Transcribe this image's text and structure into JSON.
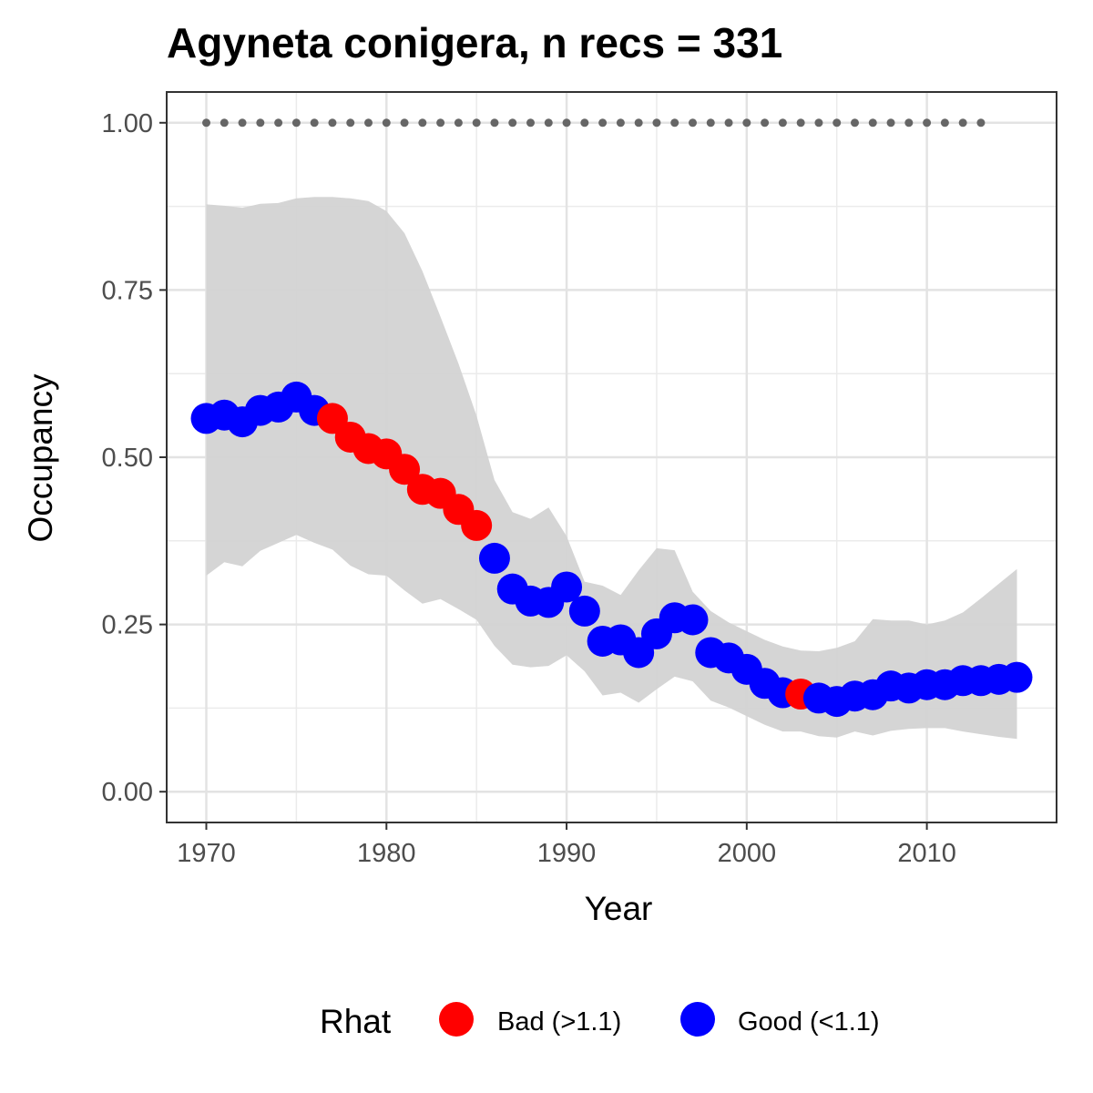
{
  "chart_data": {
    "type": "line",
    "title": "Agyneta conigera, n recs = 331",
    "xlabel": "Year",
    "ylabel": "Occupancy",
    "xlim": [
      1967.8,
      2017.2
    ],
    "ylim": [
      -0.046,
      1.046
    ],
    "x_ticks": [
      1970,
      1980,
      1990,
      2000,
      2010
    ],
    "x_tick_labels": [
      "1970",
      "1980",
      "1990",
      "2000",
      "2010"
    ],
    "y_ticks": [
      0,
      0.25,
      0.5,
      0.75,
      1.0
    ],
    "y_tick_labels": [
      "0.00",
      "0.25",
      "0.50",
      "0.75",
      "1.00"
    ],
    "grid": true,
    "legend": {
      "title": "Rhat",
      "position": "bottom",
      "entries": [
        {
          "label": "Bad (>1.1)",
          "color": "#FF0000"
        },
        {
          "label": "Good (<1.1)",
          "color": "#0000FF"
        }
      ]
    },
    "colors": {
      "bad": "#FF0000",
      "good": "#0000FF",
      "ribbon": "#D3D3D3",
      "reference": "#666666"
    },
    "years": [
      1970,
      1971,
      1972,
      1973,
      1974,
      1975,
      1976,
      1977,
      1978,
      1979,
      1980,
      1981,
      1982,
      1983,
      1984,
      1985,
      1986,
      1987,
      1988,
      1989,
      1990,
      1991,
      1992,
      1993,
      1994,
      1995,
      1996,
      1997,
      1998,
      1999,
      2000,
      2001,
      2002,
      2003,
      2004,
      2005,
      2006,
      2007,
      2008,
      2009,
      2010,
      2011,
      2012,
      2013,
      2014,
      2015
    ],
    "occupancy": [
      0.558,
      0.563,
      0.553,
      0.57,
      0.575,
      0.59,
      0.57,
      0.558,
      0.53,
      0.513,
      0.505,
      0.482,
      0.452,
      0.446,
      0.422,
      0.398,
      0.349,
      0.303,
      0.285,
      0.283,
      0.306,
      0.27,
      0.225,
      0.227,
      0.208,
      0.236,
      0.26,
      0.257,
      0.208,
      0.2,
      0.183,
      0.162,
      0.148,
      0.146,
      0.14,
      0.135,
      0.143,
      0.145,
      0.158,
      0.155,
      0.16,
      0.16,
      0.166,
      0.166,
      0.168,
      0.171
    ],
    "rhat_status": [
      "good",
      "good",
      "good",
      "good",
      "good",
      "good",
      "good",
      "bad",
      "bad",
      "bad",
      "bad",
      "bad",
      "bad",
      "bad",
      "bad",
      "bad",
      "good",
      "good",
      "good",
      "good",
      "good",
      "good",
      "good",
      "good",
      "good",
      "good",
      "good",
      "good",
      "good",
      "good",
      "good",
      "good",
      "good",
      "bad",
      "good",
      "good",
      "good",
      "good",
      "good",
      "good",
      "good",
      "good",
      "good",
      "good",
      "good",
      "good"
    ],
    "ci_upper": [
      0.878,
      0.876,
      0.873,
      0.879,
      0.88,
      0.887,
      0.889,
      0.889,
      0.887,
      0.883,
      0.868,
      0.835,
      0.778,
      0.71,
      0.64,
      0.562,
      0.466,
      0.418,
      0.408,
      0.425,
      0.382,
      0.314,
      0.308,
      0.294,
      0.331,
      0.364,
      0.361,
      0.299,
      0.27,
      0.253,
      0.24,
      0.227,
      0.217,
      0.211,
      0.21,
      0.215,
      0.225,
      0.258,
      0.256,
      0.256,
      0.25,
      0.256,
      0.268,
      0.289,
      0.333
    ],
    "ci_upper_years": [
      1970,
      1971,
      1972,
      1973,
      1974,
      1975,
      1976,
      1977,
      1978,
      1979,
      1980,
      1981,
      1982,
      1983,
      1984,
      1985,
      1986,
      1987,
      1988,
      1989,
      1990,
      1991,
      1992,
      1993,
      1994,
      1995,
      1996,
      1997,
      1998,
      1999,
      2000,
      2001,
      2002,
      2003,
      2004,
      2005,
      2006,
      2007,
      2008,
      2009,
      2010,
      2011,
      2012,
      2013,
      2015
    ],
    "ci_lower": [
      0.323,
      0.343,
      0.337,
      0.36,
      0.372,
      0.384,
      0.372,
      0.362,
      0.338,
      0.325,
      0.323,
      0.301,
      0.281,
      0.288,
      0.273,
      0.257,
      0.218,
      0.19,
      0.186,
      0.188,
      0.204,
      0.18,
      0.144,
      0.148,
      0.133,
      0.153,
      0.172,
      0.165,
      0.136,
      0.126,
      0.113,
      0.1,
      0.09,
      0.09,
      0.083,
      0.081,
      0.09,
      0.084,
      0.091,
      0.094,
      0.095,
      0.095,
      0.09,
      0.086,
      0.082,
      0.079
    ],
    "reference_years": [
      1970,
      1971,
      1972,
      1973,
      1974,
      1975,
      1976,
      1977,
      1978,
      1979,
      1980,
      1981,
      1982,
      1983,
      1984,
      1985,
      1986,
      1987,
      1988,
      1989,
      1990,
      1991,
      1992,
      1993,
      1994,
      1995,
      1996,
      1997,
      1998,
      1999,
      2000,
      2001,
      2002,
      2003,
      2004,
      2005,
      2006,
      2007,
      2008,
      2009,
      2010,
      2011,
      2012,
      2013
    ],
    "reference_value": 1.0
  }
}
